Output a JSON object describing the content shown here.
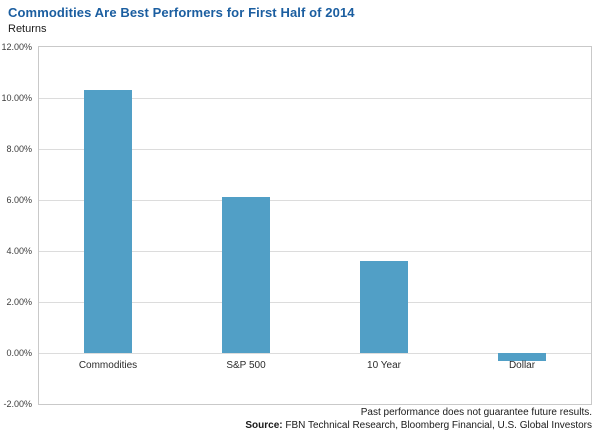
{
  "title": "Commodities Are Best Performers for First Half of 2014",
  "chart_data": {
    "type": "bar",
    "title": "Commodities Are Best Performers for First Half of 2014",
    "ylabel": "Returns",
    "xlabel": "",
    "categories": [
      "Commodities",
      "S&P 500",
      "10 Year",
      "Dollar"
    ],
    "values": [
      10.3,
      6.1,
      3.6,
      -0.3
    ],
    "ylim": [
      -2,
      12
    ],
    "yticks": [
      {
        "value": 12,
        "label": "12.00%"
      },
      {
        "value": 10,
        "label": "10.00%"
      },
      {
        "value": 8,
        "label": "8.00%"
      },
      {
        "value": 6,
        "label": "6.00%"
      },
      {
        "value": 4,
        "label": "4.00%"
      },
      {
        "value": 2,
        "label": "2.00%"
      },
      {
        "value": 0,
        "label": "0.00%"
      },
      {
        "value": -2,
        "label": "-2.00%"
      }
    ],
    "grid": true,
    "legend": false,
    "bar_color": "#519fc6"
  },
  "colors": {
    "title": "#1b5ea0",
    "bar": "#519fc6",
    "gridline": "#dcdcdc"
  },
  "footer": {
    "disclaimer": "Past performance does not guarantee future results.",
    "source_label": "Source:",
    "source_text": " FBN Technical Research, Bloomberg Financial, U.S. Global Investors"
  }
}
